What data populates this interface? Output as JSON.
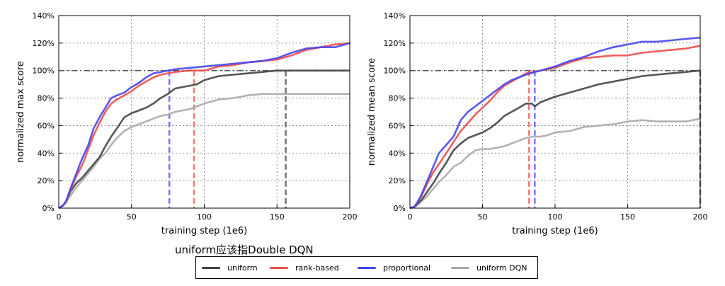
{
  "annotation": "uniform应该指Double DQN",
  "legend": {
    "placement": "bottom-center",
    "entries": [
      {
        "name": "uniform",
        "color": "#444444"
      },
      {
        "name": "rank-based",
        "color": "#f04b4b"
      },
      {
        "name": "proportional",
        "color": "#4646f0"
      },
      {
        "name": "uniform DQN",
        "color": "#aaaaaa"
      }
    ]
  },
  "chart_data": [
    {
      "type": "line",
      "xlabel": "training step (1e6)",
      "ylabel": "normalized max score",
      "xlim": [
        0,
        200
      ],
      "ylim": [
        0,
        140
      ],
      "xticks": [
        "0",
        "50",
        "100",
        "150",
        "200"
      ],
      "yticks": [
        "0%",
        "20%",
        "40%",
        "60%",
        "80%",
        "100%",
        "120%",
        "140%"
      ],
      "grid": true,
      "reference_line": 100,
      "markers": [
        {
          "series": "proportional",
          "x": 76
        },
        {
          "series": "rank-based",
          "x": 93
        },
        {
          "series": "uniform",
          "x": 156
        }
      ],
      "series": [
        {
          "name": "uniform",
          "color": "#444444",
          "points": [
            [
              0,
              0
            ],
            [
              3,
              2
            ],
            [
              5,
              5
            ],
            [
              8,
              12
            ],
            [
              12,
              18
            ],
            [
              16,
              22
            ],
            [
              20,
              27
            ],
            [
              24,
              32
            ],
            [
              28,
              37
            ],
            [
              32,
              45
            ],
            [
              36,
              52
            ],
            [
              40,
              58
            ],
            [
              45,
              66
            ],
            [
              50,
              69
            ],
            [
              55,
              71
            ],
            [
              60,
              73
            ],
            [
              65,
              76
            ],
            [
              70,
              80
            ],
            [
              75,
              83
            ],
            [
              80,
              87
            ],
            [
              85,
              88
            ],
            [
              90,
              89
            ],
            [
              95,
              90
            ],
            [
              100,
              93
            ],
            [
              110,
              96
            ],
            [
              120,
              97
            ],
            [
              130,
              98
            ],
            [
              140,
              99
            ],
            [
              150,
              100
            ],
            [
              175,
              100
            ],
            [
              200,
              100
            ]
          ]
        },
        {
          "name": "rank-based",
          "color": "#f04b4b",
          "points": [
            [
              0,
              0
            ],
            [
              3,
              2
            ],
            [
              5,
              5
            ],
            [
              8,
              13
            ],
            [
              12,
              23
            ],
            [
              16,
              31
            ],
            [
              20,
              42
            ],
            [
              24,
              53
            ],
            [
              28,
              62
            ],
            [
              32,
              70
            ],
            [
              36,
              76
            ],
            [
              40,
              79
            ],
            [
              45,
              82
            ],
            [
              50,
              85
            ],
            [
              55,
              89
            ],
            [
              60,
              92
            ],
            [
              65,
              95
            ],
            [
              70,
              97
            ],
            [
              75,
              98
            ],
            [
              80,
              99
            ],
            [
              90,
              100
            ],
            [
              100,
              100
            ],
            [
              110,
              103
            ],
            [
              120,
              104
            ],
            [
              130,
              106
            ],
            [
              140,
              107
            ],
            [
              150,
              108
            ],
            [
              160,
              111
            ],
            [
              170,
              115
            ],
            [
              180,
              117
            ],
            [
              190,
              119
            ],
            [
              200,
              120
            ]
          ]
        },
        {
          "name": "proportional",
          "color": "#4646f0",
          "points": [
            [
              0,
              0
            ],
            [
              3,
              2
            ],
            [
              5,
              5
            ],
            [
              8,
              14
            ],
            [
              12,
              25
            ],
            [
              16,
              36
            ],
            [
              20,
              45
            ],
            [
              24,
              58
            ],
            [
              28,
              66
            ],
            [
              32,
              73
            ],
            [
              36,
              80
            ],
            [
              40,
              82
            ],
            [
              45,
              84
            ],
            [
              50,
              88
            ],
            [
              55,
              91
            ],
            [
              60,
              95
            ],
            [
              65,
              98
            ],
            [
              70,
              99
            ],
            [
              75,
              100
            ],
            [
              80,
              101
            ],
            [
              90,
              102
            ],
            [
              100,
              103
            ],
            [
              110,
              104
            ],
            [
              120,
              105
            ],
            [
              130,
              106
            ],
            [
              140,
              107
            ],
            [
              150,
              109
            ],
            [
              160,
              113
            ],
            [
              170,
              116
            ],
            [
              180,
              117
            ],
            [
              190,
              117
            ],
            [
              200,
              120
            ]
          ]
        },
        {
          "name": "uniform DQN",
          "color": "#aaaaaa",
          "points": [
            [
              0,
              0
            ],
            [
              3,
              2
            ],
            [
              5,
              4
            ],
            [
              8,
              9
            ],
            [
              12,
              15
            ],
            [
              16,
              20
            ],
            [
              20,
              25
            ],
            [
              24,
              30
            ],
            [
              28,
              36
            ],
            [
              32,
              40
            ],
            [
              36,
              46
            ],
            [
              40,
              51
            ],
            [
              45,
              56
            ],
            [
              50,
              59
            ],
            [
              55,
              61
            ],
            [
              60,
              63
            ],
            [
              65,
              65
            ],
            [
              70,
              67
            ],
            [
              75,
              68
            ],
            [
              80,
              70
            ],
            [
              90,
              72
            ],
            [
              100,
              76
            ],
            [
              110,
              79
            ],
            [
              120,
              80
            ],
            [
              130,
              82
            ],
            [
              140,
              83
            ],
            [
              150,
              83
            ],
            [
              175,
              83
            ],
            [
              200,
              83
            ]
          ]
        }
      ]
    },
    {
      "type": "line",
      "xlabel": "training step (1e6)",
      "ylabel": "normalized mean score",
      "xlim": [
        0,
        200
      ],
      "ylim": [
        0,
        140
      ],
      "xticks": [
        "0",
        "50",
        "100",
        "150",
        "200"
      ],
      "yticks": [
        "0%",
        "20%",
        "40%",
        "60%",
        "80%",
        "100%",
        "120%",
        "140%"
      ],
      "grid": true,
      "reference_line": 100,
      "markers": [
        {
          "series": "rank-based",
          "x": 82
        },
        {
          "series": "proportional",
          "x": 86
        },
        {
          "series": "uniform",
          "x": 200
        }
      ],
      "series": [
        {
          "name": "uniform",
          "color": "#444444",
          "points": [
            [
              0,
              0
            ],
            [
              3,
              1
            ],
            [
              5,
              3
            ],
            [
              8,
              6
            ],
            [
              12,
              12
            ],
            [
              16,
              18
            ],
            [
              20,
              25
            ],
            [
              25,
              33
            ],
            [
              30,
              42
            ],
            [
              35,
              47
            ],
            [
              40,
              51
            ],
            [
              45,
              53
            ],
            [
              50,
              55
            ],
            [
              55,
              58
            ],
            [
              60,
              62
            ],
            [
              65,
              67
            ],
            [
              70,
              70
            ],
            [
              75,
              73
            ],
            [
              80,
              76
            ],
            [
              84,
              76
            ],
            [
              86,
              74
            ],
            [
              90,
              77
            ],
            [
              100,
              81
            ],
            [
              110,
              84
            ],
            [
              120,
              87
            ],
            [
              130,
              90
            ],
            [
              140,
              92
            ],
            [
              150,
              94
            ],
            [
              160,
              96
            ],
            [
              170,
              97
            ],
            [
              180,
              98
            ],
            [
              190,
              99
            ],
            [
              200,
              100
            ]
          ]
        },
        {
          "name": "rank-based",
          "color": "#f04b4b",
          "points": [
            [
              0,
              0
            ],
            [
              3,
              1
            ],
            [
              5,
              4
            ],
            [
              8,
              9
            ],
            [
              12,
              18
            ],
            [
              16,
              26
            ],
            [
              20,
              32
            ],
            [
              25,
              40
            ],
            [
              30,
              48
            ],
            [
              35,
              56
            ],
            [
              40,
              62
            ],
            [
              45,
              68
            ],
            [
              50,
              73
            ],
            [
              55,
              78
            ],
            [
              60,
              84
            ],
            [
              65,
              89
            ],
            [
              70,
              92
            ],
            [
              75,
              95
            ],
            [
              80,
              98
            ],
            [
              85,
              99
            ],
            [
              90,
              100
            ],
            [
              100,
              102
            ],
            [
              110,
              106
            ],
            [
              120,
              109
            ],
            [
              130,
              110
            ],
            [
              140,
              111
            ],
            [
              150,
              111
            ],
            [
              160,
              113
            ],
            [
              170,
              114
            ],
            [
              180,
              115
            ],
            [
              190,
              116
            ],
            [
              200,
              118
            ]
          ]
        },
        {
          "name": "proportional",
          "color": "#4646f0",
          "points": [
            [
              0,
              0
            ],
            [
              3,
              1
            ],
            [
              5,
              4
            ],
            [
              8,
              10
            ],
            [
              12,
              20
            ],
            [
              16,
              30
            ],
            [
              20,
              40
            ],
            [
              25,
              46
            ],
            [
              30,
              52
            ],
            [
              35,
              64
            ],
            [
              40,
              70
            ],
            [
              45,
              74
            ],
            [
              50,
              78
            ],
            [
              55,
              82
            ],
            [
              60,
              86
            ],
            [
              65,
              90
            ],
            [
              70,
              93
            ],
            [
              75,
              95
            ],
            [
              80,
              97
            ],
            [
              86,
              99
            ],
            [
              90,
              100
            ],
            [
              100,
              103
            ],
            [
              110,
              107
            ],
            [
              120,
              110
            ],
            [
              130,
              114
            ],
            [
              140,
              117
            ],
            [
              150,
              119
            ],
            [
              160,
              121
            ],
            [
              170,
              121
            ],
            [
              180,
              122
            ],
            [
              190,
              123
            ],
            [
              200,
              124
            ]
          ]
        },
        {
          "name": "uniform DQN",
          "color": "#aaaaaa",
          "points": [
            [
              0,
              0
            ],
            [
              3,
              1
            ],
            [
              5,
              2
            ],
            [
              8,
              5
            ],
            [
              12,
              9
            ],
            [
              16,
              14
            ],
            [
              20,
              19
            ],
            [
              25,
              24
            ],
            [
              30,
              30
            ],
            [
              35,
              33
            ],
            [
              40,
              38
            ],
            [
              45,
              42
            ],
            [
              50,
              43
            ],
            [
              55,
              43
            ],
            [
              60,
              44
            ],
            [
              65,
              45
            ],
            [
              70,
              47
            ],
            [
              75,
              49
            ],
            [
              80,
              51
            ],
            [
              85,
              52
            ],
            [
              90,
              52
            ],
            [
              95,
              53
            ],
            [
              100,
              55
            ],
            [
              110,
              56
            ],
            [
              120,
              59
            ],
            [
              130,
              60
            ],
            [
              140,
              61
            ],
            [
              150,
              63
            ],
            [
              160,
              64
            ],
            [
              170,
              63
            ],
            [
              180,
              63
            ],
            [
              190,
              63
            ],
            [
              200,
              65
            ]
          ]
        }
      ]
    }
  ]
}
